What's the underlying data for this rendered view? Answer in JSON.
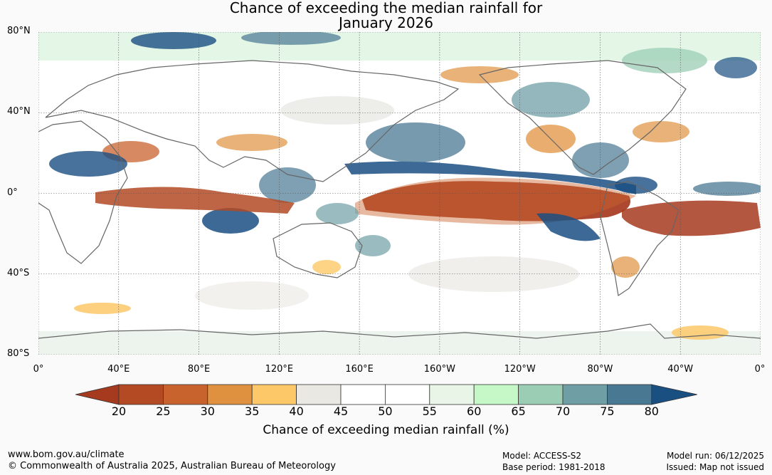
{
  "title": {
    "line1": "Chance of exceeding the median rainfall for",
    "line2": "January 2026"
  },
  "map": {
    "lat_labels": [
      "80°N",
      "40°N",
      "0°",
      "40°S",
      "80°S"
    ],
    "lat_values": [
      80,
      40,
      0,
      -40,
      -80
    ],
    "lon_labels": [
      "0°",
      "40°E",
      "80°E",
      "120°E",
      "160°E",
      "160°W",
      "120°W",
      "80°W",
      "40°W",
      "0°"
    ],
    "lon_values": [
      0,
      40,
      80,
      120,
      160,
      200,
      240,
      280,
      320,
      360
    ],
    "lat_range": [
      -80,
      80
    ],
    "lon_range": [
      0,
      360
    ]
  },
  "colorbar": {
    "ticks": [
      "20",
      "25",
      "30",
      "35",
      "40",
      "45",
      "50",
      "55",
      "60",
      "65",
      "70",
      "75",
      "80"
    ],
    "colors": [
      "#a63a1e",
      "#b34a24",
      "#c9632e",
      "#e0913f",
      "#fcc868",
      "#e9e8e3",
      "#ffffff",
      "#ffffff",
      "#e8f5e7",
      "#c6f7c7",
      "#9bcdb4",
      "#6f9fa5",
      "#497893",
      "#1a4f82"
    ],
    "label": "Chance of exceeding median rainfall (%)"
  },
  "footer": {
    "website": "www.bom.gov.au/climate",
    "copyright": "© Commonwealth of Australia 2025, Australian Bureau of Meteorology",
    "model": "Model: ACCESS-S2",
    "base_period": "Base period: 1981-2018",
    "model_run": "Model run: 06/12/2025",
    "issued": "Issued: Map not issued"
  }
}
